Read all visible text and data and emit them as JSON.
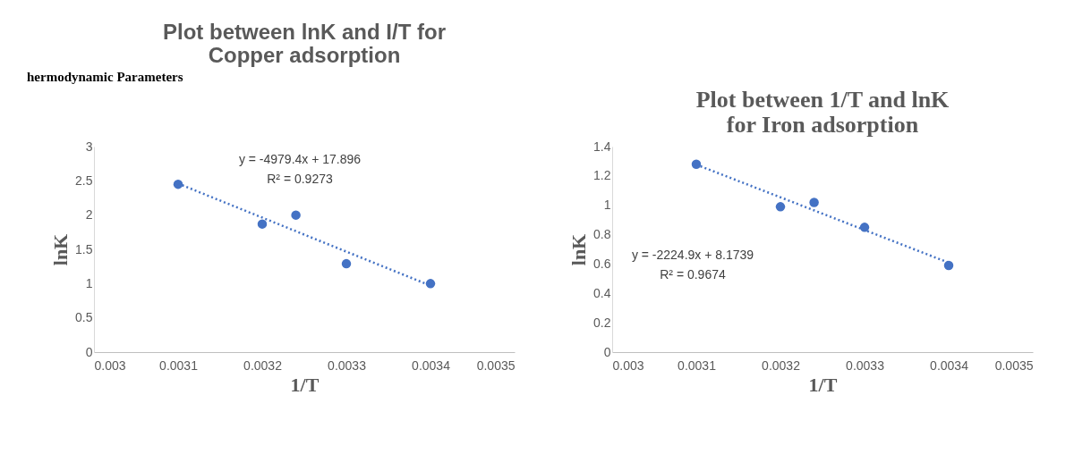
{
  "chart_data": [
    {
      "type": "scatter",
      "title": "Plot between lnK and I/T for\nCopper adsorption",
      "xlabel": "1/T",
      "ylabel": "lnK",
      "annotations": [
        "hermodynamic Parameters",
        "y = -4979.4x + 17.896",
        "R² = 0.9273"
      ],
      "xlim": [
        0.003,
        0.0035
      ],
      "xticks": [
        0.003,
        0.0031,
        0.0032,
        0.0033,
        0.0034,
        0.0035
      ],
      "ylim": [
        0,
        3
      ],
      "yticks": [
        0,
        0.5,
        1,
        1.5,
        2,
        2.5,
        3
      ],
      "grid": false,
      "series": [
        {
          "color": "#4472c4",
          "marker": "circle",
          "x": [
            0.0031,
            0.0032,
            0.00324,
            0.0033,
            0.0034
          ],
          "values": [
            2.45,
            1.87,
            2.0,
            1.29,
            1.0
          ]
        },
        {
          "type": "line",
          "color": "#4472c4",
          "marker": "none",
          "line_style": "dotted",
          "x": [
            0.0031,
            0.0034
          ],
          "values": [
            2.46,
            0.97
          ]
        }
      ]
    },
    {
      "type": "scatter",
      "title": "Plot between 1/T and lnK\nfor Iron adsorption",
      "xlabel": "1/T",
      "ylabel": "lnK",
      "annotations": [
        "y = -2224.9x + 8.1739",
        "R² = 0.9674"
      ],
      "xlim": [
        0.003,
        0.0035
      ],
      "xticks": [
        0.003,
        0.0031,
        0.0032,
        0.0033,
        0.0034,
        0.0035
      ],
      "ylim": [
        0,
        1.4
      ],
      "yticks": [
        0,
        0.2,
        0.4,
        0.6,
        0.8,
        1,
        1.2,
        1.4
      ],
      "grid": false,
      "series": [
        {
          "color": "#4472c4",
          "marker": "circle",
          "x": [
            0.0031,
            0.0032,
            0.00324,
            0.0033,
            0.0034
          ],
          "values": [
            1.28,
            0.99,
            1.02,
            0.85,
            0.59
          ]
        },
        {
          "type": "line",
          "color": "#4472c4",
          "marker": "none",
          "line_style": "dotted",
          "x": [
            0.0031,
            0.0034
          ],
          "values": [
            1.277,
            0.609
          ]
        }
      ]
    }
  ]
}
